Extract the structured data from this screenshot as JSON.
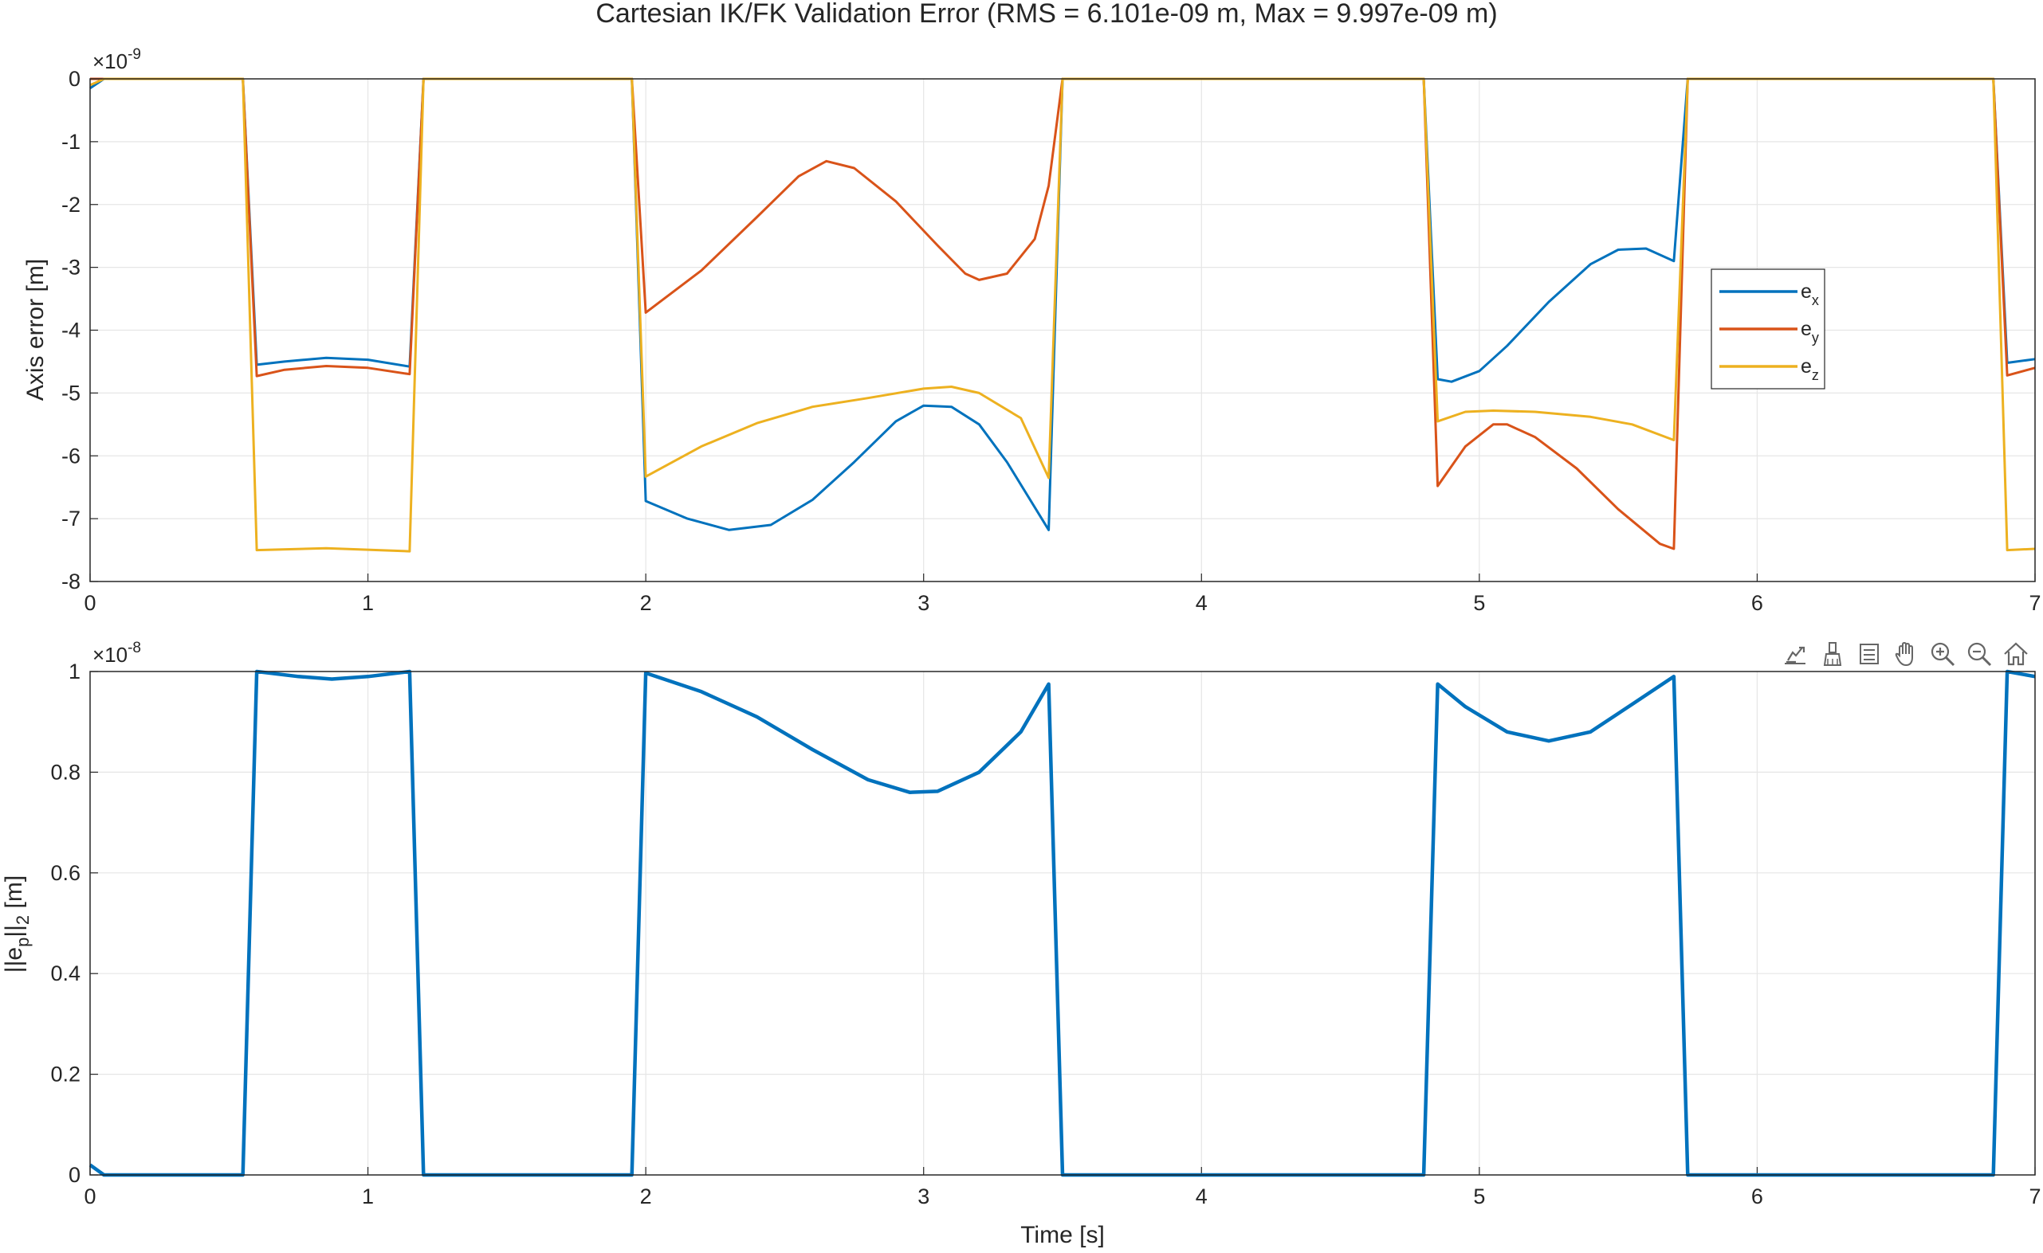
{
  "figure": {
    "title": "Cartesian IK/FK Validation Error (RMS = 6.101e-09 m, Max = 9.997e-09 m)",
    "toolbar": [
      {
        "name": "export-icon"
      },
      {
        "name": "brush-icon"
      },
      {
        "name": "data-tips-icon"
      },
      {
        "name": "pan-icon"
      },
      {
        "name": "zoom-in-icon"
      },
      {
        "name": "zoom-out-icon"
      },
      {
        "name": "home-icon"
      }
    ],
    "colors": {
      "ex": "#0072BD",
      "ey": "#D95319",
      "ez": "#EDB120",
      "grid": "#e6e6e6",
      "axis": "#262626"
    }
  },
  "chart_data": [
    {
      "type": "line",
      "exponent_label": "×10",
      "exponent": "-9",
      "xlabel": "",
      "ylabel": "Axis error [m]",
      "xlim": [
        0,
        7
      ],
      "ylim": [
        -8,
        0
      ],
      "xticks": [
        "0",
        "1",
        "2",
        "3",
        "4",
        "5",
        "6",
        "7"
      ],
      "yticks": [
        "0",
        "-1",
        "-2",
        "-3",
        "-4",
        "-5",
        "-6",
        "-7",
        "-8"
      ],
      "grid": true,
      "legend": {
        "placement": "right",
        "entries": [
          {
            "main": "e",
            "sub": "x"
          },
          {
            "main": "e",
            "sub": "y"
          },
          {
            "main": "e",
            "sub": "z"
          }
        ]
      },
      "series": [
        {
          "key": "ex",
          "points": [
            [
              0,
              -0.15
            ],
            [
              0.05,
              0
            ],
            [
              0.55,
              0
            ],
            [
              0.6,
              -4.55
            ],
            [
              0.7,
              -4.5
            ],
            [
              0.85,
              -4.44
            ],
            [
              1.0,
              -4.47
            ],
            [
              1.15,
              -4.58
            ],
            [
              1.2,
              0
            ],
            [
              1.95,
              0
            ],
            [
              2.0,
              -6.72
            ],
            [
              2.15,
              -7.0
            ],
            [
              2.3,
              -7.18
            ],
            [
              2.45,
              -7.1
            ],
            [
              2.6,
              -6.7
            ],
            [
              2.75,
              -6.1
            ],
            [
              2.9,
              -5.45
            ],
            [
              3.0,
              -5.2
            ],
            [
              3.1,
              -5.22
            ],
            [
              3.2,
              -5.5
            ],
            [
              3.3,
              -6.1
            ],
            [
              3.45,
              -7.18
            ],
            [
              3.5,
              0
            ],
            [
              4.8,
              0
            ],
            [
              4.85,
              -4.78
            ],
            [
              4.9,
              -4.82
            ],
            [
              5.0,
              -4.65
            ],
            [
              5.1,
              -4.25
            ],
            [
              5.25,
              -3.55
            ],
            [
              5.4,
              -2.95
            ],
            [
              5.5,
              -2.72
            ],
            [
              5.6,
              -2.7
            ],
            [
              5.7,
              -2.9
            ],
            [
              5.75,
              0
            ],
            [
              6.85,
              0
            ],
            [
              6.9,
              -4.52
            ],
            [
              7.0,
              -4.46
            ]
          ]
        },
        {
          "key": "ey",
          "points": [
            [
              0,
              0
            ],
            [
              0.55,
              0
            ],
            [
              0.6,
              -4.73
            ],
            [
              0.7,
              -4.63
            ],
            [
              0.85,
              -4.57
            ],
            [
              1.0,
              -4.6
            ],
            [
              1.15,
              -4.7
            ],
            [
              1.2,
              0
            ],
            [
              1.95,
              0
            ],
            [
              2.0,
              -3.72
            ],
            [
              2.2,
              -3.05
            ],
            [
              2.4,
              -2.2
            ],
            [
              2.55,
              -1.55
            ],
            [
              2.65,
              -1.31
            ],
            [
              2.75,
              -1.42
            ],
            [
              2.9,
              -1.95
            ],
            [
              3.05,
              -2.65
            ],
            [
              3.15,
              -3.1
            ],
            [
              3.2,
              -3.2
            ],
            [
              3.3,
              -3.1
            ],
            [
              3.4,
              -2.55
            ],
            [
              3.45,
              -1.7
            ],
            [
              3.5,
              0
            ],
            [
              4.8,
              0
            ],
            [
              4.85,
              -6.48
            ],
            [
              4.95,
              -5.85
            ],
            [
              5.05,
              -5.5
            ],
            [
              5.1,
              -5.5
            ],
            [
              5.2,
              -5.7
            ],
            [
              5.35,
              -6.2
            ],
            [
              5.5,
              -6.85
            ],
            [
              5.65,
              -7.4
            ],
            [
              5.7,
              -7.48
            ],
            [
              5.75,
              0
            ],
            [
              6.85,
              0
            ],
            [
              6.9,
              -4.72
            ],
            [
              7.0,
              -4.6
            ]
          ]
        },
        {
          "key": "ez",
          "points": [
            [
              0,
              -0.1
            ],
            [
              0.05,
              0
            ],
            [
              0.55,
              0
            ],
            [
              0.6,
              -7.5
            ],
            [
              0.85,
              -7.47
            ],
            [
              1.15,
              -7.52
            ],
            [
              1.2,
              0
            ],
            [
              1.95,
              0
            ],
            [
              2.0,
              -6.33
            ],
            [
              2.2,
              -5.85
            ],
            [
              2.4,
              -5.48
            ],
            [
              2.6,
              -5.22
            ],
            [
              2.8,
              -5.08
            ],
            [
              3.0,
              -4.93
            ],
            [
              3.1,
              -4.9
            ],
            [
              3.2,
              -5.0
            ],
            [
              3.35,
              -5.4
            ],
            [
              3.45,
              -6.35
            ],
            [
              3.5,
              0
            ],
            [
              4.8,
              0
            ],
            [
              4.85,
              -5.45
            ],
            [
              4.95,
              -5.3
            ],
            [
              5.05,
              -5.28
            ],
            [
              5.2,
              -5.3
            ],
            [
              5.4,
              -5.38
            ],
            [
              5.55,
              -5.5
            ],
            [
              5.7,
              -5.75
            ],
            [
              5.75,
              0
            ],
            [
              6.85,
              0
            ],
            [
              6.9,
              -7.5
            ],
            [
              7.0,
              -7.48
            ]
          ]
        }
      ]
    },
    {
      "type": "line",
      "exponent_label": "×10",
      "exponent": "-8",
      "xlabel": "Time [s]",
      "ylabel": {
        "pre": "||e",
        "sub1": "p",
        "mid": "||",
        "sub2": "2",
        "post": " [m]"
      },
      "xlim": [
        0,
        7
      ],
      "ylim": [
        0,
        1
      ],
      "xticks": [
        "0",
        "1",
        "2",
        "3",
        "4",
        "5",
        "6",
        "7"
      ],
      "yticks": [
        "1",
        "0.8",
        "0.6",
        "0.4",
        "0.2",
        "0"
      ],
      "grid": true,
      "series": [
        {
          "key": "ex",
          "points": [
            [
              0,
              0.02
            ],
            [
              0.05,
              0
            ],
            [
              0.55,
              0
            ],
            [
              0.6,
              1.0
            ],
            [
              0.75,
              0.99
            ],
            [
              0.87,
              0.985
            ],
            [
              1.0,
              0.99
            ],
            [
              1.15,
              1.0
            ],
            [
              1.2,
              0
            ],
            [
              1.95,
              0
            ],
            [
              2.0,
              0.997
            ],
            [
              2.2,
              0.96
            ],
            [
              2.4,
              0.91
            ],
            [
              2.6,
              0.845
            ],
            [
              2.8,
              0.785
            ],
            [
              2.95,
              0.76
            ],
            [
              3.05,
              0.762
            ],
            [
              3.2,
              0.8
            ],
            [
              3.35,
              0.88
            ],
            [
              3.45,
              0.975
            ],
            [
              3.5,
              0
            ],
            [
              4.8,
              0
            ],
            [
              4.85,
              0.975
            ],
            [
              4.95,
              0.93
            ],
            [
              5.1,
              0.88
            ],
            [
              5.25,
              0.862
            ],
            [
              5.4,
              0.88
            ],
            [
              5.55,
              0.935
            ],
            [
              5.7,
              0.99
            ],
            [
              5.75,
              0
            ],
            [
              6.85,
              0
            ],
            [
              6.9,
              1.0
            ],
            [
              7.0,
              0.99
            ]
          ]
        }
      ]
    }
  ]
}
